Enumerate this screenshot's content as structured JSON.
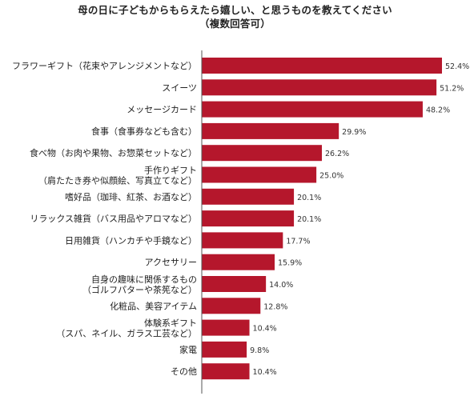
{
  "chart_data": {
    "type": "bar",
    "orientation": "horizontal",
    "title": [
      "母の日に子どもからもらえたら嬉しい、と思うものを教えてください",
      "（複数回答可）"
    ],
    "value_suffix": "%",
    "bar_color": "#B5172C",
    "xlim": [
      0,
      60
    ],
    "grid": false,
    "legend": "none",
    "categories": [
      [
        "フラワーギフト（花束やアレンジメントなど）"
      ],
      [
        "スイーツ"
      ],
      [
        "メッセージカード"
      ],
      [
        "食事（食事券なども含む）"
      ],
      [
        "食べ物（お肉や果物、お惣菜セットなど）"
      ],
      [
        "手作りギフト",
        "（肩たたき券や似顔絵、写真立てなど）"
      ],
      [
        "嗜好品（珈琲、紅茶、お酒など）"
      ],
      [
        "リラックス雑貨（バス用品やアロマなど）"
      ],
      [
        "日用雑貨（ハンカチや手鏡など）"
      ],
      [
        "アクセサリー"
      ],
      [
        "自身の趣味に関係するもの",
        "（ゴルフパターや茶筅など）"
      ],
      [
        "化粧品、美容アイテム"
      ],
      [
        "体験系ギフト",
        "（スパ、ネイル、ガラス工芸など）"
      ],
      [
        "家電"
      ],
      [
        "その他"
      ]
    ],
    "values": [
      52.4,
      51.2,
      48.2,
      29.9,
      26.2,
      25.0,
      20.1,
      20.1,
      17.7,
      15.9,
      14.0,
      12.8,
      10.4,
      9.8,
      10.4
    ],
    "value_labels": [
      "52.4%",
      "51.2%",
      "48.2%",
      "29.9%",
      "26.2%",
      "25.0%",
      "20.1%",
      "20.1%",
      "17.7%",
      "15.9%",
      "14.0%",
      "12.8%",
      "10.4%",
      "9.8%",
      "10.4%"
    ]
  }
}
